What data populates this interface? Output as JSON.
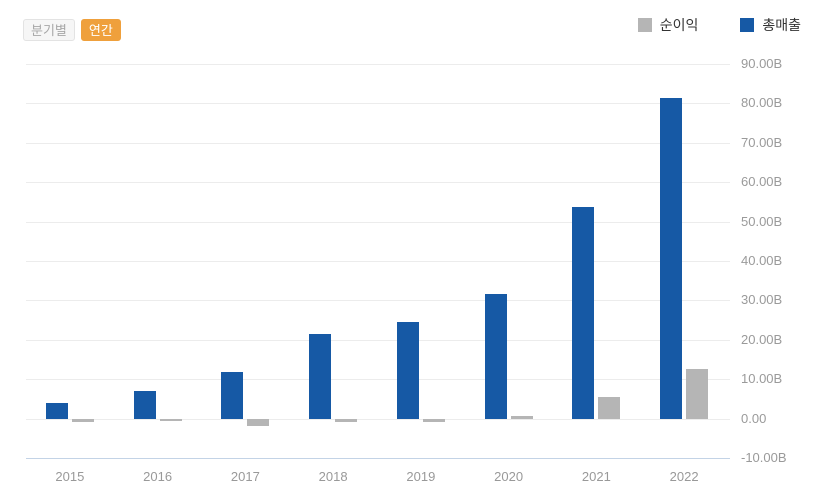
{
  "toolbar": {
    "quarterly_label": "분기별",
    "annual_label": "연간",
    "active": "연간"
  },
  "legend": {
    "items": [
      {
        "label": "순이익",
        "color": "#b5b5b5"
      },
      {
        "label": "총매출",
        "color": "#1659a5"
      }
    ]
  },
  "chart_data": {
    "type": "bar",
    "title": "",
    "categories": [
      "2015",
      "2016",
      "2017",
      "2018",
      "2019",
      "2020",
      "2021",
      "2022"
    ],
    "series": [
      {
        "name": "총매출",
        "semantic": "total-revenue",
        "color": "#1659a5",
        "values": [
          4.05,
          7.0,
          11.76,
          21.45,
          24.58,
          31.54,
          53.82,
          81.46
        ]
      },
      {
        "name": "순이익",
        "semantic": "net-income",
        "color": "#b5b5b5",
        "values": [
          -0.89,
          -0.67,
          -1.96,
          -0.98,
          -0.86,
          0.72,
          5.52,
          12.56
        ]
      }
    ],
    "unit": "B",
    "ylim": [
      -10,
      90
    ],
    "y_ticks": [
      "90.00B",
      "80.00B",
      "70.00B",
      "60.00B",
      "50.00B",
      "40.00B",
      "30.00B",
      "20.00B",
      "10.00B",
      "0.00",
      "-10.00B"
    ],
    "grid": true,
    "legend_position": "top-right",
    "colors": {
      "grid_line": "#ececec",
      "axis_line": "#c3d3e6",
      "y_tick_text": "#9a9a9a",
      "x_tick_text": "#999999",
      "accent_orange": "#efa03c",
      "inactive_button_bg": "#f6f6f6"
    }
  }
}
